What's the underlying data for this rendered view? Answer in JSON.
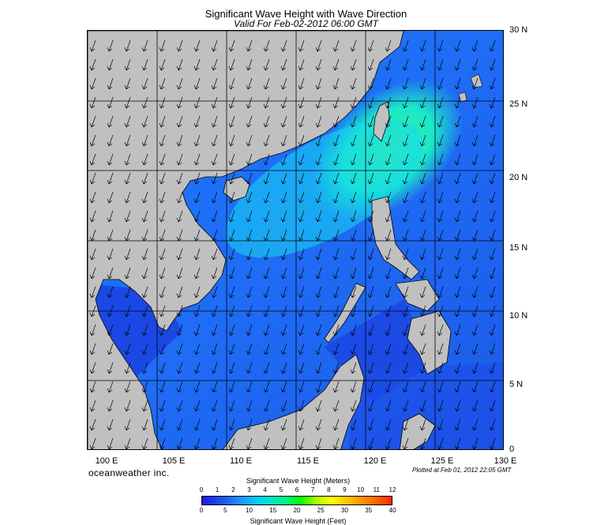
{
  "header": {
    "title": "Significant Wave Height with Wave Direction",
    "subtitle": "Valid For Feb-02-2012 06:00 GMT"
  },
  "map": {
    "lat_labels": [
      "30 N",
      "25 N",
      "20 N",
      "15 N",
      "10 N",
      "5 N",
      "0"
    ],
    "lon_labels": [
      "100 E",
      "105 E",
      "110 E",
      "115 E",
      "120 E",
      "125 E",
      "130 E"
    ],
    "lat_range": [
      0,
      30
    ],
    "lon_range": [
      100,
      130
    ],
    "land_color": "#c0c0c0",
    "grid": true
  },
  "footer": {
    "brand": "oceanweather inc.",
    "plotted": "Plotted at Feb 01, 2012 22:05 GMT"
  },
  "legend": {
    "top_label": "Significant Wave Height (Meters)",
    "bottom_label": "Significant Wave Height (Feet)",
    "meters_ticks": [
      "0",
      "1",
      "2",
      "3",
      "4",
      "5",
      "6",
      "7",
      "8",
      "9",
      "10",
      "11",
      "12"
    ],
    "feet_ticks": [
      "0",
      "5",
      "10",
      "15",
      "20",
      "25",
      "30",
      "35",
      "40"
    ]
  }
}
